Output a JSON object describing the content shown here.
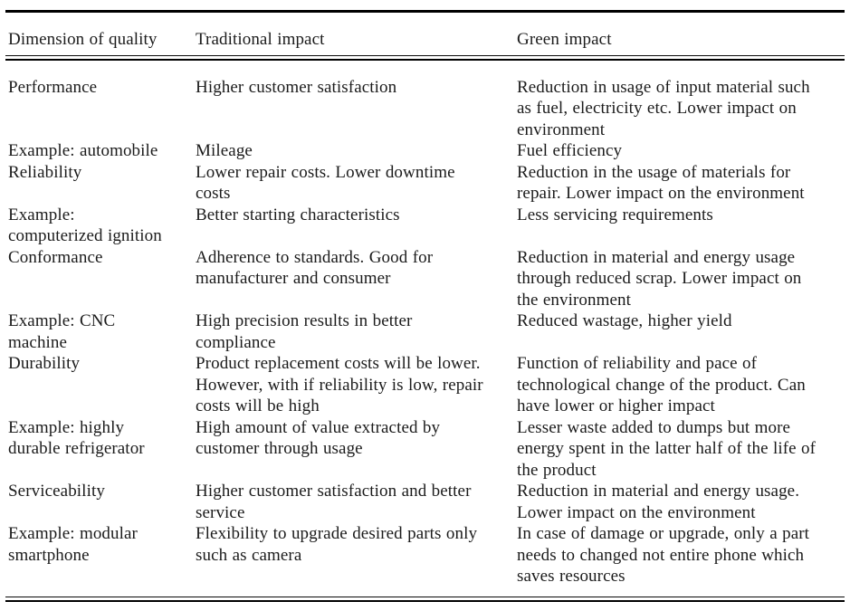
{
  "table": {
    "columns": [
      "Dimension of quality",
      "Traditional impact",
      "Green impact"
    ],
    "rows": [
      {
        "dimension": "Performance",
        "traditional": "Higher customer satisfaction",
        "green": "Reduction in usage of input material such\nas fuel, electricity etc. Lower impact on\nenvironment"
      },
      {
        "dimension": "Example: automobile",
        "traditional": "Mileage",
        "green": "Fuel efficiency"
      },
      {
        "dimension": "Reliability",
        "traditional": "Lower repair costs. Lower downtime\ncosts",
        "green": "Reduction in the usage of materials for\nrepair. Lower impact on the environment"
      },
      {
        "dimension": "Example:\ncomputerized ignition",
        "traditional": "Better starting characteristics",
        "green": "Less servicing requirements"
      },
      {
        "dimension": "Conformance",
        "traditional": "Adherence to standards. Good for\nmanufacturer and consumer",
        "green": "Reduction in material and energy usage\nthrough reduced scrap. Lower impact on\nthe environment"
      },
      {
        "dimension": "Example: CNC\nmachine",
        "traditional": "High precision results in better\ncompliance",
        "green": "Reduced wastage, higher yield"
      },
      {
        "dimension": "Durability",
        "traditional": "Product replacement costs will be lower.\nHowever, with if reliability is low, repair\ncosts will be high",
        "green": "Function of reliability and pace of\ntechnological change of the product. Can\nhave lower or higher impact"
      },
      {
        "dimension": "Example: highly\ndurable refrigerator",
        "traditional": "High amount of value extracted by\ncustomer through usage",
        "green": "Lesser waste added to dumps but more\nenergy spent in the latter half of the life of\nthe product"
      },
      {
        "dimension": "Serviceability",
        "traditional": "Higher customer satisfaction and better\nservice",
        "green": "Reduction in material and energy usage.\nLower impact on the environment"
      },
      {
        "dimension": "Example: modular\nsmartphone",
        "traditional": "Flexibility to upgrade desired parts only\nsuch as camera",
        "green": "In case of damage or upgrade, only a part\nneeds to changed not entire phone which\nsaves resources"
      }
    ]
  },
  "colors": {
    "text": "#1b1b1b",
    "rule": "#000000",
    "background": "#ffffff"
  }
}
